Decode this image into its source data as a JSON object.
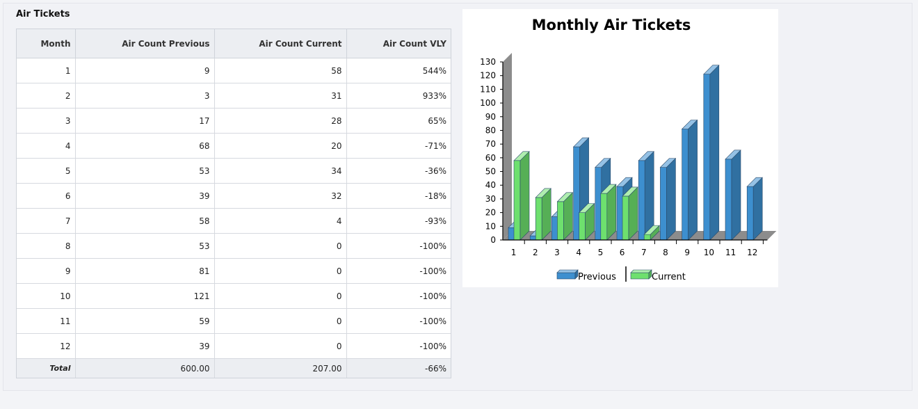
{
  "panel": {
    "title": "Air Tickets"
  },
  "table": {
    "headers": [
      "Month",
      "Air Count Previous",
      "Air Count Current",
      "Air Count VLY"
    ],
    "rows": [
      [
        "1",
        "9",
        "58",
        "544%"
      ],
      [
        "2",
        "3",
        "31",
        "933%"
      ],
      [
        "3",
        "17",
        "28",
        "65%"
      ],
      [
        "4",
        "68",
        "20",
        "-71%"
      ],
      [
        "5",
        "53",
        "34",
        "-36%"
      ],
      [
        "6",
        "39",
        "32",
        "-18%"
      ],
      [
        "7",
        "58",
        "4",
        "-93%"
      ],
      [
        "8",
        "53",
        "0",
        "-100%"
      ],
      [
        "9",
        "81",
        "0",
        "-100%"
      ],
      [
        "10",
        "121",
        "0",
        "-100%"
      ],
      [
        "11",
        "59",
        "0",
        "-100%"
      ],
      [
        "12",
        "39",
        "0",
        "-100%"
      ]
    ],
    "total": [
      "Total",
      "600.00",
      "207.00",
      "-66%"
    ]
  },
  "chart_data": {
    "type": "bar",
    "title": "Monthly Air Tickets",
    "categories": [
      "1",
      "2",
      "3",
      "4",
      "5",
      "6",
      "7",
      "8",
      "9",
      "10",
      "11",
      "12"
    ],
    "series": [
      {
        "name": "Previous",
        "values": [
          9,
          3,
          17,
          68,
          53,
          39,
          58,
          53,
          81,
          121,
          59,
          39
        ]
      },
      {
        "name": "Current",
        "values": [
          58,
          31,
          28,
          20,
          34,
          32,
          4,
          0,
          0,
          0,
          0,
          0
        ]
      }
    ],
    "yticks": [
      0,
      10,
      20,
      30,
      40,
      50,
      60,
      70,
      80,
      90,
      100,
      110,
      120,
      130
    ],
    "ylim": [
      0,
      130
    ],
    "legend": "bottom",
    "three_d": true,
    "colors": {
      "previous": "#3d8fcf",
      "current": "#6ee06e",
      "wall": "#8c8c8c"
    }
  }
}
